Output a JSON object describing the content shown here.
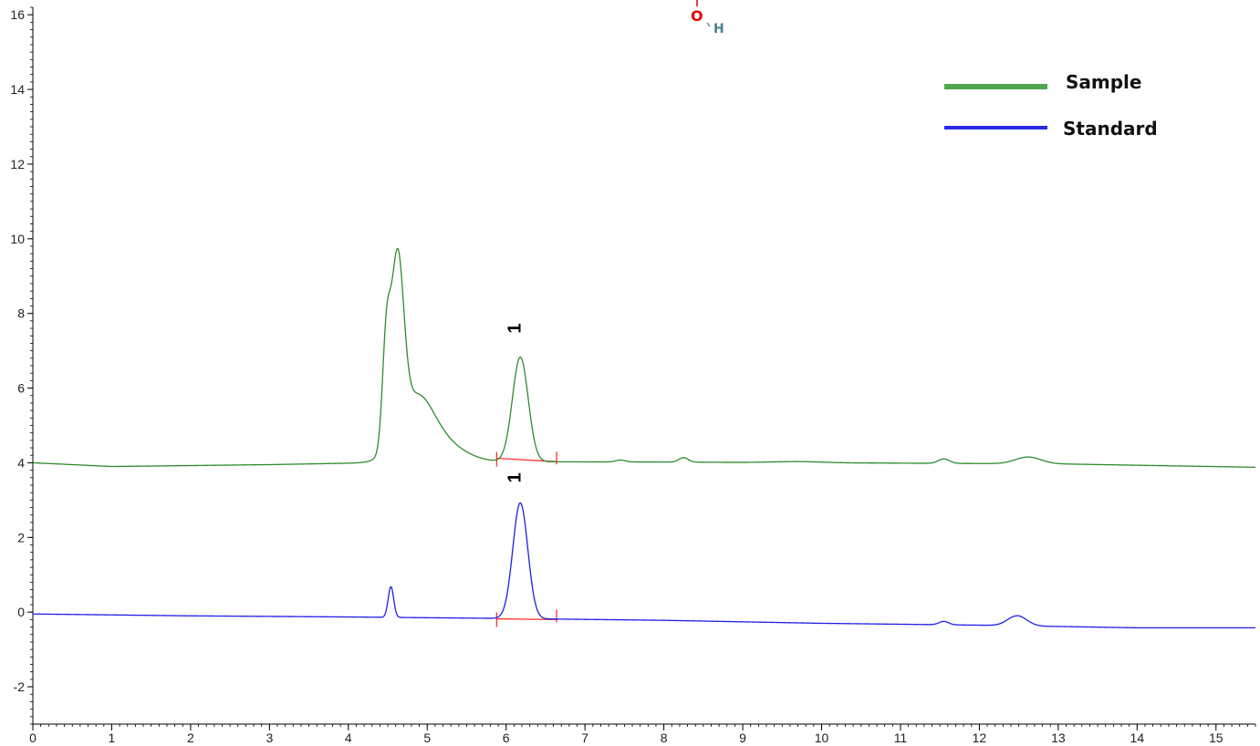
{
  "chart_data": {
    "type": "line",
    "title": "",
    "xlabel": "",
    "ylabel": "",
    "xlim": [
      0,
      15.5
    ],
    "ylim": [
      -3,
      16.2
    ],
    "x_ticks": [
      0,
      1,
      2,
      3,
      4,
      5,
      6,
      7,
      8,
      9,
      10,
      11,
      12,
      13,
      14,
      15
    ],
    "y_ticks": [
      -2,
      0,
      2,
      4,
      6,
      8,
      10,
      12,
      14,
      16
    ],
    "grid": false,
    "legend_position": "top-right",
    "series": [
      {
        "name": "Sample",
        "color": "#2e8b2e",
        "legend_color": "#4fa64f",
        "baseline": [
          [
            0,
            4.0
          ],
          [
            1,
            3.9
          ],
          [
            3,
            3.95
          ],
          [
            4.3,
            4.0
          ],
          [
            6,
            4.03
          ],
          [
            8,
            4.02
          ],
          [
            10,
            4.0
          ],
          [
            13,
            3.97
          ],
          [
            15.5,
            3.88
          ]
        ],
        "peaks": [
          {
            "center": 4.62,
            "height": 4.7,
            "width": 0.08
          },
          {
            "center": 4.48,
            "height": 2.6,
            "width": 0.05
          },
          {
            "center": 4.85,
            "height": 1.6,
            "width": 0.22
          },
          {
            "center": 5.2,
            "height": 0.45,
            "width": 0.28
          },
          {
            "center": 6.18,
            "height": 2.8,
            "width": 0.1
          },
          {
            "center": 7.45,
            "height": 0.05,
            "width": 0.06
          },
          {
            "center": 8.25,
            "height": 0.12,
            "width": 0.06
          },
          {
            "center": 9.7,
            "height": 0.03,
            "width": 0.3
          },
          {
            "center": 11.55,
            "height": 0.12,
            "width": 0.07
          },
          {
            "center": 12.62,
            "height": 0.18,
            "width": 0.16
          }
        ]
      },
      {
        "name": "Standard",
        "color": "#1f1fe6",
        "legend_color": "#2a2ae8",
        "baseline": [
          [
            0,
            -0.05
          ],
          [
            2,
            -0.1
          ],
          [
            4,
            -0.13
          ],
          [
            6,
            -0.17
          ],
          [
            8,
            -0.22
          ],
          [
            10,
            -0.3
          ],
          [
            12,
            -0.35
          ],
          [
            14,
            -0.42
          ],
          [
            15.5,
            -0.42
          ]
        ],
        "peaks": [
          {
            "center": 4.54,
            "height": 0.82,
            "width": 0.035
          },
          {
            "center": 6.18,
            "height": 3.1,
            "width": 0.095
          },
          {
            "center": 11.55,
            "height": 0.09,
            "width": 0.06
          },
          {
            "center": 12.48,
            "height": 0.27,
            "width": 0.12
          }
        ]
      }
    ],
    "peak_annotations": [
      {
        "label": "1",
        "series": "Sample",
        "x": 6.18,
        "y": 7.6
      },
      {
        "label": "1",
        "series": "Standard",
        "x": 6.18,
        "y": 3.6
      }
    ],
    "integration_baselines": [
      {
        "series": "Sample",
        "x_start": 5.88,
        "y_start": 4.12,
        "x_end": 6.64,
        "y_end": 4.03,
        "color": "#ff3030"
      },
      {
        "series": "Standard",
        "x_start": 5.88,
        "y_start": -0.18,
        "x_end": 6.64,
        "y_end": -0.2,
        "color": "#ff3030"
      }
    ]
  },
  "structure_fragment": {
    "oxygen_label": "O",
    "hydrogen_label": "H"
  }
}
